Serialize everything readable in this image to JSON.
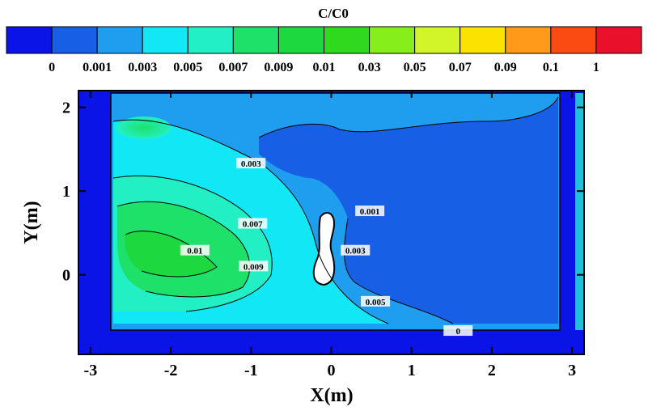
{
  "chart_data": {
    "type": "heatmap",
    "title": "C/C0",
    "xlabel": "X(m)",
    "ylabel": "Y(m)",
    "xlim": [
      -3.15,
      3.15
    ],
    "ylim": [
      -0.95,
      2.2
    ],
    "x_ticks": [
      "-3",
      "-2",
      "-1",
      "0",
      "1",
      "2",
      "3"
    ],
    "x_tick_values": [
      -3,
      -2,
      -1,
      0,
      1,
      2,
      3
    ],
    "y_ticks": [
      "2",
      "1",
      "0"
    ],
    "y_tick_values": [
      2,
      1,
      0
    ],
    "colorbar": {
      "levels": [
        "0",
        "0.001",
        "0.003",
        "0.005",
        "0.007",
        "0.009",
        "0.01",
        "0.03",
        "0.05",
        "0.07",
        "0.09",
        "0.1",
        "1"
      ],
      "colors": [
        "#0a14e6",
        "#1760e6",
        "#1f9ef0",
        "#12e8f5",
        "#22f0c4",
        "#1ee16a",
        "#1ed840",
        "#30d81e",
        "#86ee1a",
        "#d2f52a",
        "#fbe200",
        "#ff9a1a",
        "#fb4a12",
        "#e8102a"
      ]
    },
    "contour_labels": [
      {
        "text": "0.003",
        "x": -1.0,
        "y": 1.32
      },
      {
        "text": "0.007",
        "x": -0.98,
        "y": 0.6
      },
      {
        "text": "0.01",
        "x": -1.7,
        "y": 0.28
      },
      {
        "text": "0.009",
        "x": -0.97,
        "y": 0.09
      },
      {
        "text": "0.001",
        "x": 0.48,
        "y": 0.75
      },
      {
        "text": "0.003",
        "x": 0.3,
        "y": 0.28
      },
      {
        "text": "0.005",
        "x": 0.55,
        "y": -0.33
      },
      {
        "text": "0",
        "x": 1.58,
        "y": -0.68
      }
    ],
    "grid": false
  }
}
